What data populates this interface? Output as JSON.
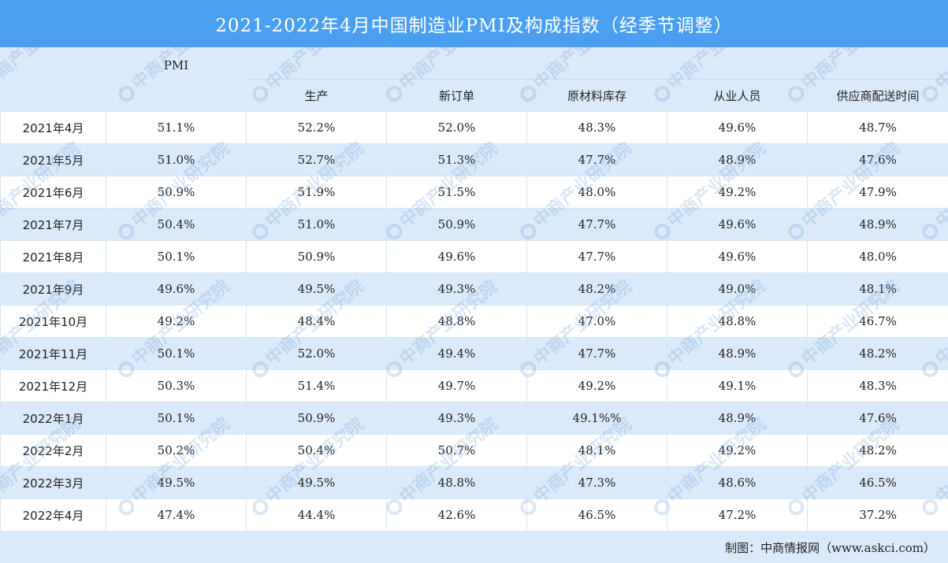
{
  "title": "2021-2022年4月中国制造业PMI及构成指数（经季节调整）",
  "headers": {
    "pmi": "PMI",
    "columns": [
      "生产",
      "新订单",
      "原材料库存",
      "从业人员",
      "供应商配送时间"
    ]
  },
  "rows": [
    {
      "month": "2021年4月",
      "values": [
        "51.1%",
        "52.2%",
        "52.0%",
        "48.3%",
        "49.6%",
        "48.7%"
      ]
    },
    {
      "month": "2021年5月",
      "values": [
        "51.0%",
        "52.7%",
        "51.3%",
        "47.7%",
        "48.9%",
        "47.6%"
      ]
    },
    {
      "month": "2021年6月",
      "values": [
        "50.9%",
        "51.9%",
        "51.5%",
        "48.0%",
        "49.2%",
        "47.9%"
      ]
    },
    {
      "month": "2021年7月",
      "values": [
        "50.4%",
        "51.0%",
        "50.9%",
        "47.7%",
        "49.6%",
        "48.9%"
      ]
    },
    {
      "month": "2021年8月",
      "values": [
        "50.1%",
        "50.9%",
        "49.6%",
        "47.7%",
        "49.6%",
        "48.0%"
      ]
    },
    {
      "month": "2021年9月",
      "values": [
        "49.6%",
        "49.5%",
        "49.3%",
        "48.2%",
        "49.0%",
        "48.1%"
      ]
    },
    {
      "month": "2021年10月",
      "values": [
        "49.2%",
        "48.4%",
        "48.8%",
        "47.0%",
        "48.8%",
        "46.7%"
      ]
    },
    {
      "month": "2021年11月",
      "values": [
        "50.1%",
        "52.0%",
        "49.4%",
        "47.7%",
        "48.9%",
        "48.2%"
      ]
    },
    {
      "month": "2021年12月",
      "values": [
        "50.3%",
        "51.4%",
        "49.7%",
        "49.2%",
        "49.1%",
        "48.3%"
      ]
    },
    {
      "month": "2022年1月",
      "values": [
        "50.1%",
        "50.9%",
        "49.3%",
        "49.1%%",
        "48.9%",
        "47.6%"
      ]
    },
    {
      "month": "2022年2月",
      "values": [
        "50.2%",
        "50.4%",
        "50.7%",
        "48.1%",
        "49.2%",
        "48.2%"
      ]
    },
    {
      "month": "2022年3月",
      "values": [
        "49.5%",
        "49.5%",
        "48.8%",
        "47.3%",
        "48.6%",
        "46.5%"
      ]
    },
    {
      "month": "2022年4月",
      "values": [
        "47.4%",
        "44.4%",
        "42.6%",
        "46.5%",
        "47.2%",
        "37.2%"
      ]
    }
  ],
  "footer": "制图：中商情报网（www.askci.com）",
  "watermark": "中商产业研究院",
  "colors": {
    "title_bg": "#4b9ff0",
    "stripe": "#dbeafb",
    "watermark": "#78a5d7"
  }
}
